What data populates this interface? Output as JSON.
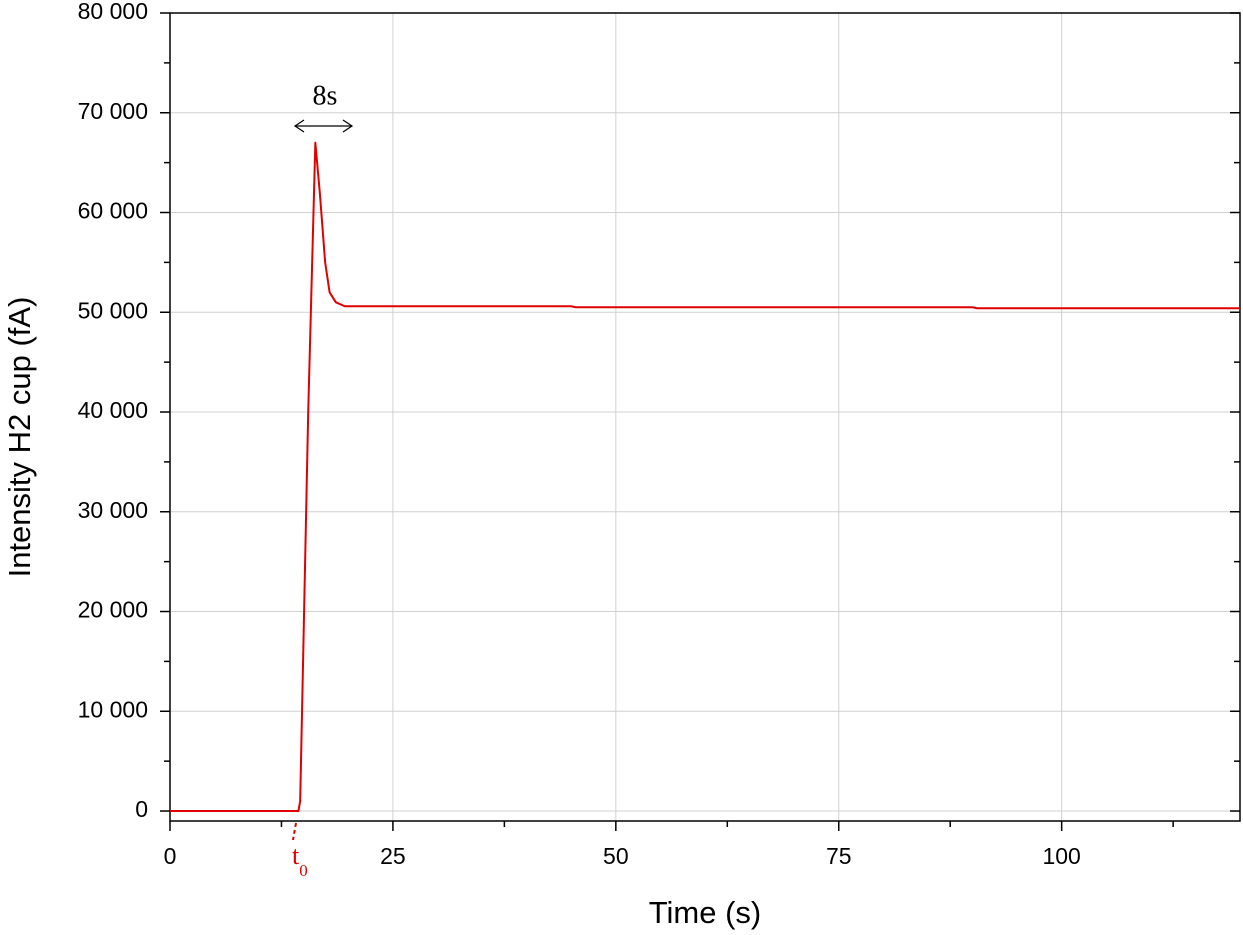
{
  "chart_data": {
    "type": "line",
    "x_label": "Time (s)",
    "y_label": "Intensity H2 cup (fA)",
    "annotations": {
      "peak_width": "8s",
      "t0": {
        "text": "t",
        "subscript": "0"
      }
    },
    "x": [
      0,
      14.4,
      14.6,
      15.5,
      16.3,
      16.8,
      17.4,
      17.9,
      18.6,
      19.6,
      25,
      45,
      45.5,
      90,
      90.5,
      120
    ],
    "values": [
      0,
      0,
      1000,
      40000,
      67000,
      62000,
      55000,
      52000,
      51000,
      50600,
      50600,
      50600,
      50500,
      50500,
      50400,
      50400
    ],
    "color": "#e00000",
    "xlim": [
      0,
      120
    ],
    "ylim": [
      -1000,
      80000
    ],
    "xticks": [
      0,
      25,
      50,
      75,
      100
    ],
    "xminorticks": [
      12.5,
      37.5,
      62.5,
      87.5,
      112.5
    ],
    "yticks": [
      0,
      {
        "value": 10000,
        "label": "10 000"
      },
      {
        "value": 20000,
        "label": "20 000"
      },
      {
        "value": 30000,
        "label": "30 000"
      },
      {
        "value": 40000,
        "label": "40 000"
      },
      {
        "value": 50000,
        "label": "50 000"
      },
      {
        "value": 60000,
        "label": "60 000"
      },
      {
        "value": 70000,
        "label": "70 000"
      },
      {
        "value": 80000,
        "label": "80 000"
      }
    ],
    "yminorticks": [
      5000,
      15000,
      25000,
      35000,
      45000,
      55000,
      65000,
      75000
    ],
    "grid": true
  }
}
